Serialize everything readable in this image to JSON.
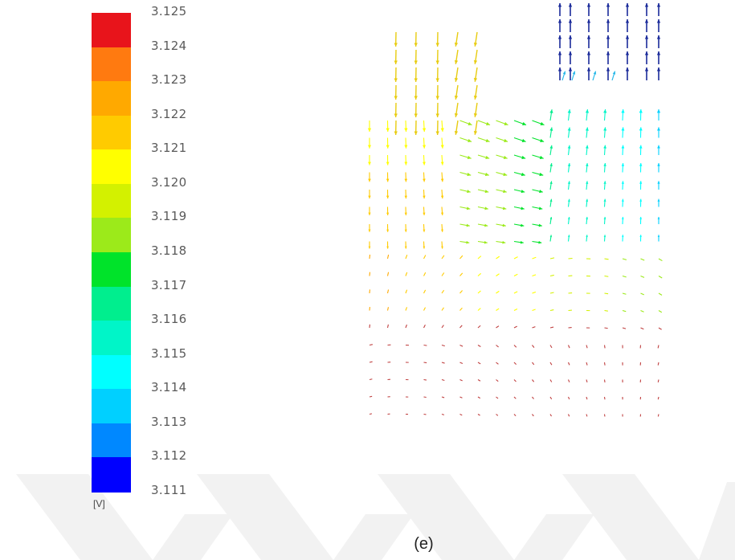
{
  "legend": {
    "ticks": [
      "3.125",
      "3.124",
      "3.123",
      "3.122",
      "3.121",
      "3.120",
      "3.119",
      "3.118",
      "3.117",
      "3.116",
      "3.115",
      "3.114",
      "3.113",
      "3.112",
      "3.111"
    ],
    "unit": "[V]",
    "colors": [
      "#e8141b",
      "#ff7a10",
      "#ffa900",
      "#ffcb00",
      "#ffff00",
      "#d3f100",
      "#9cea1a",
      "#00e32a",
      "#00ee8e",
      "#00f5c8",
      "#00ffff",
      "#00d0ff",
      "#0088ff",
      "#0000ff"
    ]
  },
  "caption": "(e)",
  "watermark_color": "#f1f1f1"
}
